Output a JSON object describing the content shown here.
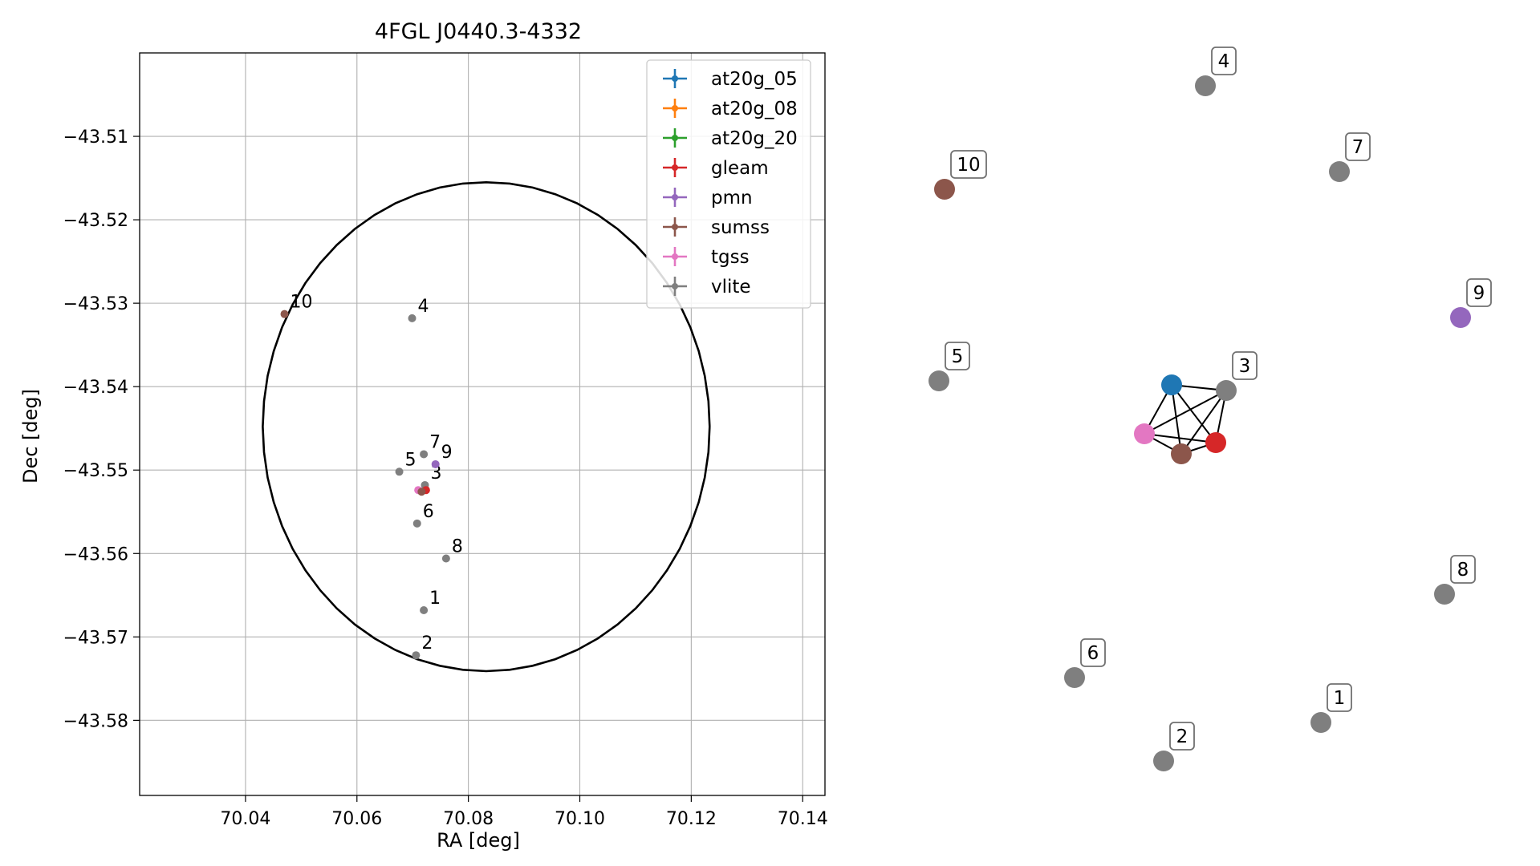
{
  "chart_data": [
    {
      "type": "scatter",
      "title": "4FGL J0440.3-4332",
      "xlabel": "RA [deg]",
      "ylabel": "Dec [deg]",
      "xlim": [
        70.021,
        70.144
      ],
      "ylim": [
        -43.589,
        -43.5
      ],
      "x_ticks": [
        70.04,
        70.06,
        70.08,
        70.1,
        70.12,
        70.14
      ],
      "x_tick_labels": [
        "70.04",
        "70.06",
        "70.08",
        "70.10",
        "70.12",
        "70.14"
      ],
      "y_ticks": [
        -43.51,
        -43.52,
        -43.53,
        -43.54,
        -43.55,
        -43.56,
        -43.57,
        -43.58
      ],
      "y_tick_labels": [
        "−43.51",
        "−43.52",
        "−43.53",
        "−43.54",
        "−43.55",
        "−43.56",
        "−43.57",
        "−43.58"
      ],
      "grid": true,
      "legend_position": "top-right",
      "legend": [
        {
          "name": "at20g_05",
          "color": "#1f77b4"
        },
        {
          "name": "at20g_08",
          "color": "#ff7f0e"
        },
        {
          "name": "at20g_20",
          "color": "#2ca02c"
        },
        {
          "name": "gleam",
          "color": "#d62728"
        },
        {
          "name": "pmn",
          "color": "#9467bd"
        },
        {
          "name": "sumss",
          "color": "#8c564b"
        },
        {
          "name": "tgss",
          "color": "#e377c2"
        },
        {
          "name": "vlite",
          "color": "#7f7f7f"
        }
      ],
      "ellipse": {
        "center": [
          70.0832,
          -43.5448
        ],
        "ra_semi_axis": 0.0401,
        "dec_semi_axis": 0.0293,
        "color": "#000000"
      },
      "points": [
        {
          "label": "1",
          "catalog": "vlite",
          "ra": 70.072,
          "dec": -43.5668,
          "color": "#7f7f7f"
        },
        {
          "label": "2",
          "catalog": "vlite",
          "ra": 70.0706,
          "dec": -43.5722,
          "color": "#7f7f7f"
        },
        {
          "label": "3",
          "catalog": "vlite",
          "ra": 70.0722,
          "dec": -43.5518,
          "color": "#7f7f7f"
        },
        {
          "label": "",
          "catalog": "gleam",
          "ra": 70.0724,
          "dec": -43.5524,
          "color": "#d62728"
        },
        {
          "label": "",
          "catalog": "tgss",
          "ra": 70.071,
          "dec": -43.5524,
          "color": "#e377c2"
        },
        {
          "label": "",
          "catalog": "sumss",
          "ra": 70.0716,
          "dec": -43.5526,
          "color": "#8c564b"
        },
        {
          "label": "4",
          "catalog": "vlite",
          "ra": 70.0699,
          "dec": -43.5318,
          "color": "#7f7f7f"
        },
        {
          "label": "5",
          "catalog": "vlite",
          "ra": 70.0676,
          "dec": -43.5502,
          "color": "#7f7f7f"
        },
        {
          "label": "6",
          "catalog": "vlite",
          "ra": 70.0708,
          "dec": -43.5564,
          "color": "#7f7f7f"
        },
        {
          "label": "7",
          "catalog": "vlite",
          "ra": 70.072,
          "dec": -43.5481,
          "color": "#7f7f7f"
        },
        {
          "label": "8",
          "catalog": "vlite",
          "ra": 70.076,
          "dec": -43.5606,
          "color": "#7f7f7f"
        },
        {
          "label": "9",
          "catalog": "pmn",
          "ra": 70.0741,
          "dec": -43.5493,
          "color": "#9467bd"
        },
        {
          "label": "10",
          "catalog": "sumss",
          "ra": 70.047,
          "dec": -43.5313,
          "color": "#8c564b"
        }
      ]
    },
    {
      "type": "network",
      "nodes": [
        {
          "id": "at20g_05",
          "label": "",
          "color": "#1f77b4"
        },
        {
          "id": "3",
          "label": "3",
          "color": "#7f7f7f"
        },
        {
          "id": "tgss",
          "label": "",
          "color": "#e377c2"
        },
        {
          "id": "gleam",
          "label": "",
          "color": "#d62728"
        },
        {
          "id": "sumss",
          "label": "",
          "color": "#8c564b"
        },
        {
          "id": "1",
          "label": "1",
          "color": "#7f7f7f"
        },
        {
          "id": "2",
          "label": "2",
          "color": "#7f7f7f"
        },
        {
          "id": "4",
          "label": "4",
          "color": "#7f7f7f"
        },
        {
          "id": "5",
          "label": "5",
          "color": "#7f7f7f"
        },
        {
          "id": "6",
          "label": "6",
          "color": "#7f7f7f"
        },
        {
          "id": "7",
          "label": "7",
          "color": "#7f7f7f"
        },
        {
          "id": "8",
          "label": "8",
          "color": "#7f7f7f"
        },
        {
          "id": "9",
          "label": "9",
          "color": "#9467bd"
        },
        {
          "id": "10",
          "label": "10",
          "color": "#8c564b"
        }
      ],
      "edges": [
        [
          "at20g_05",
          "3"
        ],
        [
          "at20g_05",
          "tgss"
        ],
        [
          "at20g_05",
          "gleam"
        ],
        [
          "at20g_05",
          "sumss"
        ],
        [
          "3",
          "tgss"
        ],
        [
          "3",
          "gleam"
        ],
        [
          "3",
          "sumss"
        ],
        [
          "tgss",
          "gleam"
        ],
        [
          "tgss",
          "sumss"
        ],
        [
          "gleam",
          "sumss"
        ]
      ]
    }
  ]
}
